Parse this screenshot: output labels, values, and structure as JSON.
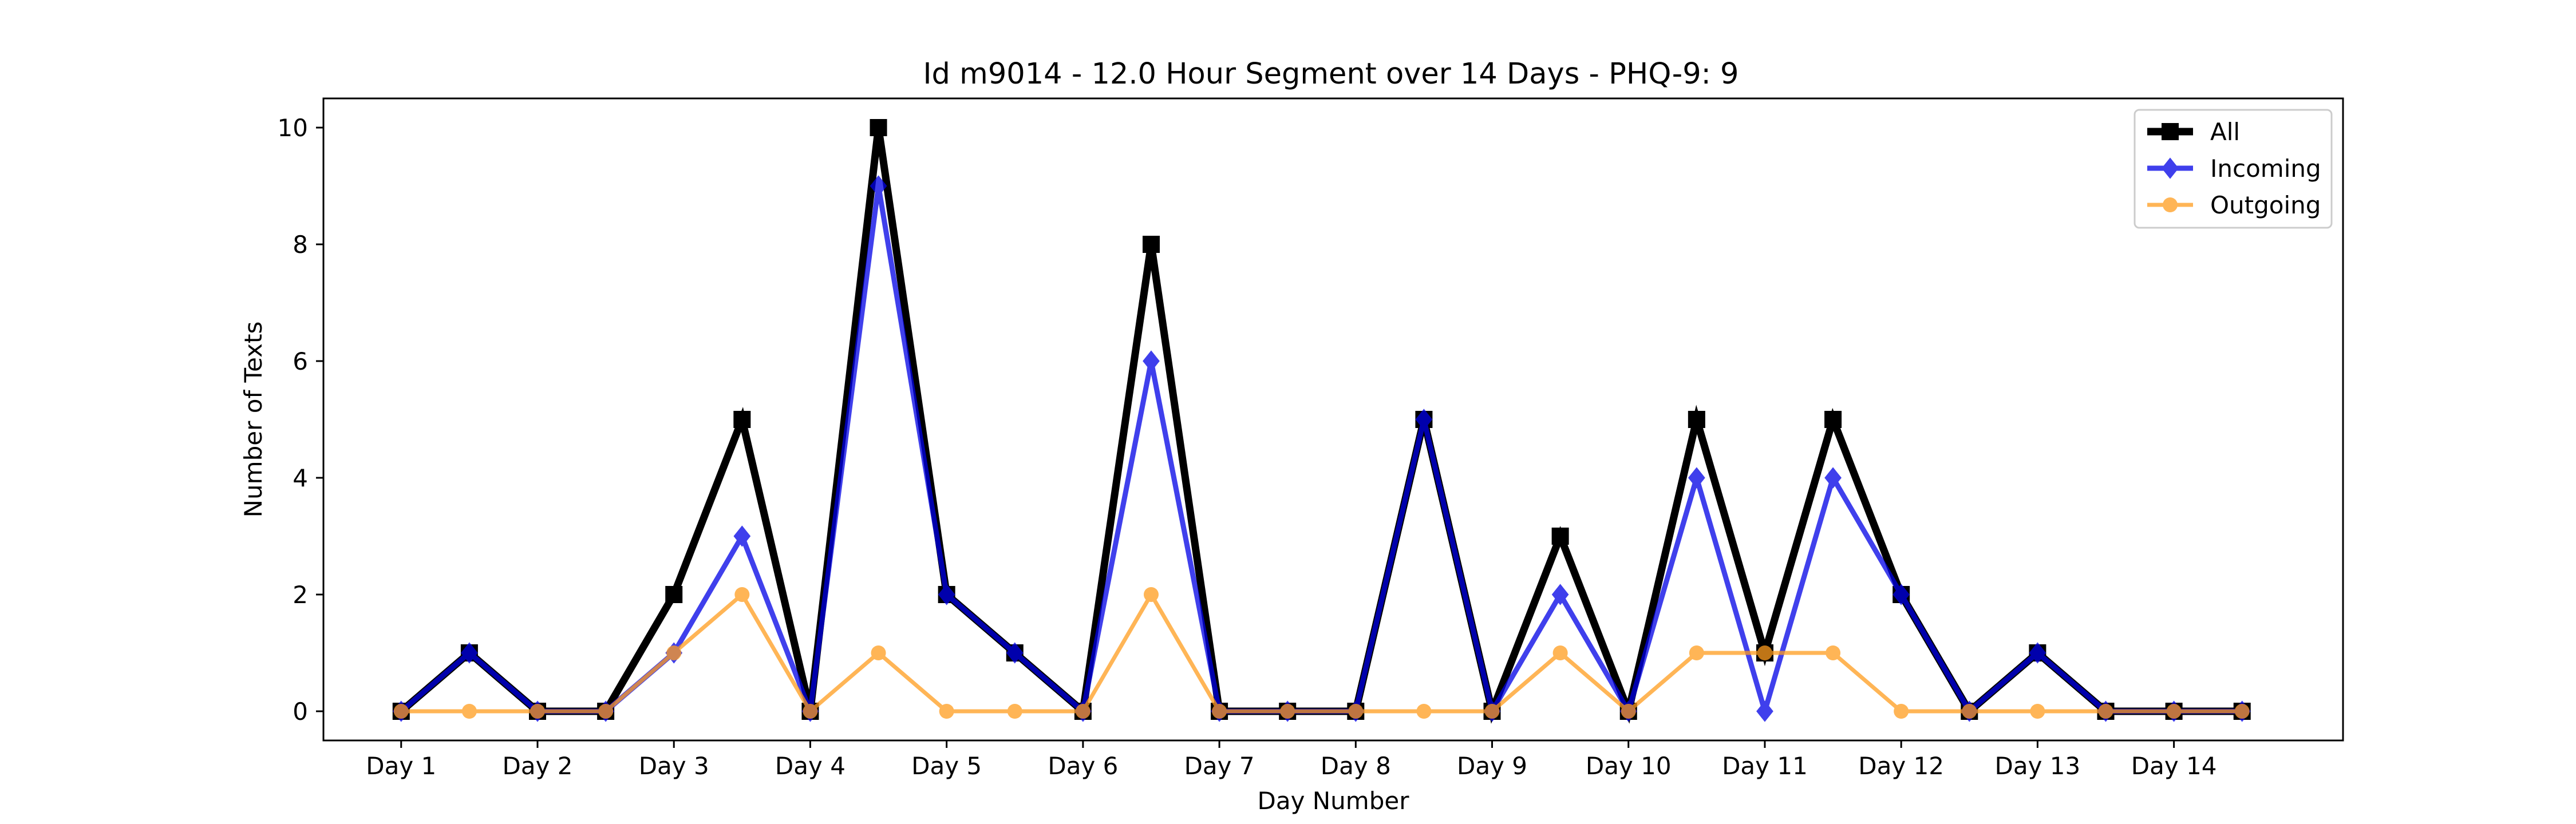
{
  "chart_data": {
    "type": "line",
    "title": "Id m9014 - 12.0 Hour Segment over 14 Days - PHQ-9: 9",
    "xlabel": "Day Number",
    "ylabel": "Number of Texts",
    "x": [
      1,
      1.5,
      2,
      2.5,
      3,
      3.5,
      4,
      4.5,
      5,
      5.5,
      6,
      6.5,
      7,
      7.5,
      8,
      8.5,
      9,
      9.5,
      10,
      10.5,
      11,
      11.5,
      12,
      12.5,
      13,
      13.5,
      14,
      14.5
    ],
    "xticks": [
      1,
      2,
      3,
      4,
      5,
      6,
      7,
      8,
      9,
      10,
      11,
      12,
      13,
      14
    ],
    "xtick_labels": [
      "Day 1",
      "Day 2",
      "Day 3",
      "Day 4",
      "Day 5",
      "Day 6",
      "Day 7",
      "Day 8",
      "Day 9",
      "Day 10",
      "Day 11",
      "Day 12",
      "Day 13",
      "Day 14"
    ],
    "xlim": [
      0.43,
      15.24
    ],
    "yticks": [
      0,
      2,
      4,
      6,
      8,
      10
    ],
    "ytick_labels": [
      "0",
      "2",
      "4",
      "6",
      "8",
      "10"
    ],
    "ylim": [
      -0.5,
      10.5
    ],
    "grid": false,
    "legend_position": "top-right",
    "series": [
      {
        "name": "All",
        "color": "#000000",
        "marker": "square",
        "values": [
          0,
          1,
          0,
          0,
          2,
          5,
          0,
          10,
          2,
          1,
          0,
          8,
          0,
          0,
          0,
          5,
          0,
          3,
          0,
          5,
          1,
          5,
          2,
          0,
          1,
          0,
          0,
          0
        ]
      },
      {
        "name": "Incoming",
        "color": "#0000e6",
        "marker": "diamond",
        "values": [
          0,
          1,
          0,
          0,
          1,
          3,
          0,
          9,
          2,
          1,
          0,
          6,
          0,
          0,
          0,
          5,
          0,
          2,
          0,
          4,
          0,
          4,
          2,
          0,
          1,
          0,
          0,
          0
        ]
      },
      {
        "name": "Outgoing",
        "color": "#ff9d1e",
        "marker": "circle",
        "values": [
          0,
          0,
          0,
          0,
          1,
          2,
          0,
          1,
          0,
          0,
          0,
          2,
          0,
          0,
          0,
          0,
          0,
          1,
          0,
          1,
          1,
          1,
          0,
          0,
          0,
          0,
          0,
          0
        ]
      }
    ]
  }
}
